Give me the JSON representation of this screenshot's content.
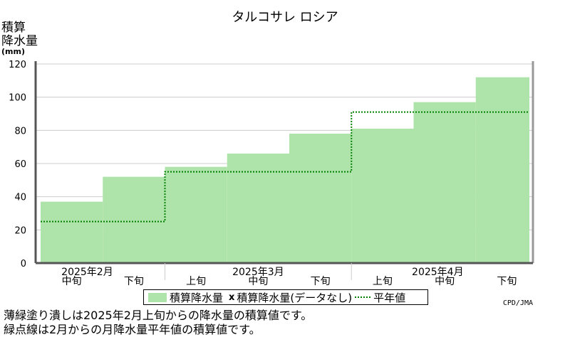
{
  "chart_data": {
    "type": "bar",
    "title": "タルコサレ ロシア",
    "ylabel": "積算\n降水量",
    "yunit": "(mm)",
    "ylim": [
      0,
      120
    ],
    "yticks": [
      0,
      20,
      40,
      60,
      80,
      100,
      120
    ],
    "categories": [
      "2025年2月 中旬",
      "2025年2月 下旬",
      "2025年3月 上旬",
      "2025年3月 中旬",
      "2025年3月 下旬",
      "2025年4月 上旬",
      "2025年4月 中旬",
      "2025年4月 下旬"
    ],
    "x_ticks": [
      "中旬",
      "下旬",
      "上旬",
      "中旬",
      "下旬",
      "上旬",
      "中旬",
      "下旬"
    ],
    "month_labels": [
      "2025年2月",
      "2025年3月",
      "2025年4月"
    ],
    "series": [
      {
        "name": "積算降水量",
        "kind": "bar",
        "color": "#aee4aa",
        "values": [
          37,
          52,
          58,
          66,
          78,
          81,
          97,
          112
        ]
      },
      {
        "name": "平年値",
        "kind": "step",
        "color": "#008000",
        "values": [
          25,
          25,
          55,
          55,
          55,
          91,
          91,
          91
        ]
      }
    ],
    "grid": true
  },
  "legend": {
    "bar_label": "積算降水量",
    "missing_marker": "x",
    "missing_label": "積算降水量(データなし)",
    "normal_label": "平年値"
  },
  "credit": "CPD/JMA",
  "notes": [
    "薄緑塗り潰しは2025年2月上旬からの降水量の積算値です。",
    "緑点線は2月からの月降水量平年値の積算値です。"
  ]
}
